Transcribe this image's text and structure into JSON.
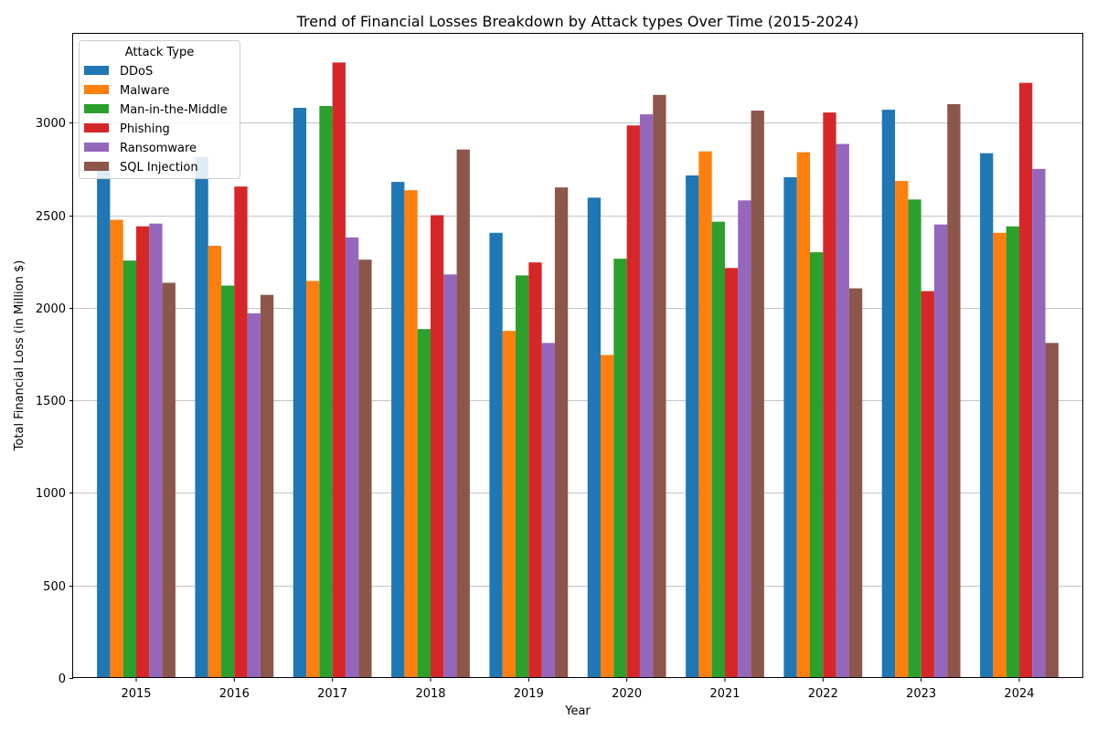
{
  "chart_data": {
    "type": "bar",
    "title": "Trend of Financial Losses Breakdown by Attack types Over Time (2015-2024)",
    "xlabel": "Year",
    "ylabel": "Total Financial Loss (in Million $)",
    "ylim": [
      0,
      3480
    ],
    "yticks": [
      0,
      500,
      1000,
      1500,
      2000,
      2500,
      3000
    ],
    "grid": "horizontal",
    "legend_title": "Attack Type",
    "legend_position": "top-left",
    "categories": [
      "2015",
      "2016",
      "2017",
      "2018",
      "2019",
      "2020",
      "2021",
      "2022",
      "2023",
      "2024"
    ],
    "series": [
      {
        "name": "DDoS",
        "color": "#1f77b4",
        "values": [
          2760,
          2815,
          3080,
          2680,
          2405,
          2595,
          2715,
          2705,
          3070,
          2835
        ]
      },
      {
        "name": "Malware",
        "color": "#ff7f0e",
        "values": [
          2475,
          2335,
          2145,
          2635,
          1875,
          1745,
          2845,
          2840,
          2685,
          2405
        ]
      },
      {
        "name": "Man-in-the-Middle",
        "color": "#2ca02c",
        "values": [
          2255,
          2120,
          3090,
          1885,
          2175,
          2265,
          2465,
          2300,
          2585,
          2440
        ]
      },
      {
        "name": "Phishing",
        "color": "#d62728",
        "values": [
          2440,
          2655,
          3325,
          2500,
          2245,
          2985,
          2215,
          3055,
          2090,
          3215
        ]
      },
      {
        "name": "Ransomware",
        "color": "#9467bd",
        "values": [
          2455,
          1970,
          2380,
          2180,
          1810,
          3045,
          2580,
          2885,
          2450,
          2750
        ]
      },
      {
        "name": "SQL Injection",
        "color": "#8c564b",
        "values": [
          2135,
          2070,
          2260,
          2855,
          2650,
          3150,
          3065,
          2105,
          3100,
          1810
        ]
      }
    ]
  }
}
